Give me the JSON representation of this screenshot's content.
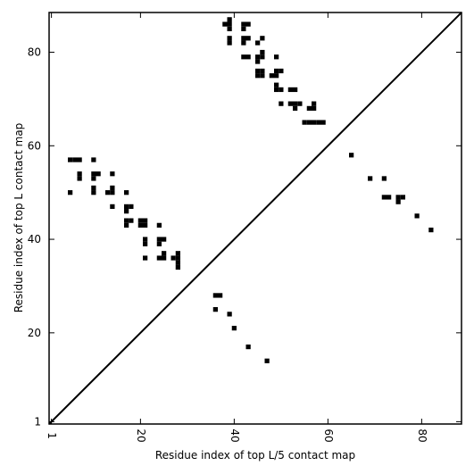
{
  "chart_data": {
    "type": "scatter",
    "title": "",
    "xlabel": "Residue index of top L/5 contact map",
    "ylabel": "Residue index of top L contact map",
    "xlim": [
      0.5,
      88.5
    ],
    "ylim": [
      0.5,
      88.5
    ],
    "xticks": [
      1,
      20,
      40,
      60,
      80
    ],
    "yticks": [
      1,
      20,
      40,
      60,
      80
    ],
    "grid": false,
    "diagonal": true,
    "marker_color": "#000000",
    "series": [
      {
        "points": [
          [
            38,
            86
          ],
          [
            39,
            86
          ],
          [
            39,
            87
          ],
          [
            39,
            85
          ],
          [
            42,
            86
          ],
          [
            43,
            86
          ],
          [
            42,
            85
          ],
          [
            39,
            83
          ],
          [
            39,
            82
          ],
          [
            42,
            83
          ],
          [
            42,
            82
          ],
          [
            43,
            83
          ],
          [
            45,
            82
          ],
          [
            46,
            83
          ],
          [
            42,
            79
          ],
          [
            43,
            79
          ],
          [
            45,
            79
          ],
          [
            45,
            78
          ],
          [
            46,
            79
          ],
          [
            46,
            80
          ],
          [
            49,
            79
          ],
          [
            45,
            76
          ],
          [
            46,
            76
          ],
          [
            45,
            75
          ],
          [
            46,
            75
          ],
          [
            48,
            75
          ],
          [
            49,
            75
          ],
          [
            49,
            76
          ],
          [
            50,
            76
          ],
          [
            49,
            73
          ],
          [
            49,
            72
          ],
          [
            50,
            72
          ],
          [
            52,
            72
          ],
          [
            53,
            72
          ],
          [
            50,
            69
          ],
          [
            52,
            69
          ],
          [
            53,
            69
          ],
          [
            54,
            69
          ],
          [
            53,
            68
          ],
          [
            56,
            68
          ],
          [
            57,
            68
          ],
          [
            57,
            69
          ],
          [
            55,
            65
          ],
          [
            56,
            65
          ],
          [
            57,
            65
          ],
          [
            58,
            65
          ],
          [
            59,
            65
          ],
          [
            5,
            57
          ],
          [
            6,
            57
          ],
          [
            7,
            57
          ],
          [
            10,
            57
          ],
          [
            7,
            54
          ],
          [
            7,
            53
          ],
          [
            10,
            54
          ],
          [
            11,
            54
          ],
          [
            14,
            54
          ],
          [
            10,
            53
          ],
          [
            10,
            51
          ],
          [
            10,
            50
          ],
          [
            13,
            50
          ],
          [
            14,
            50
          ],
          [
            14,
            51
          ],
          [
            17,
            50
          ],
          [
            5,
            50
          ],
          [
            14,
            47
          ],
          [
            17,
            47
          ],
          [
            18,
            47
          ],
          [
            17,
            46
          ],
          [
            17,
            44
          ],
          [
            18,
            44
          ],
          [
            17,
            43
          ],
          [
            20,
            44
          ],
          [
            21,
            44
          ],
          [
            20,
            43
          ],
          [
            21,
            43
          ],
          [
            24,
            43
          ],
          [
            21,
            40
          ],
          [
            21,
            39
          ],
          [
            24,
            40
          ],
          [
            25,
            40
          ],
          [
            24,
            39
          ],
          [
            21,
            36
          ],
          [
            24,
            36
          ],
          [
            25,
            36
          ],
          [
            25,
            37
          ],
          [
            27,
            36
          ],
          [
            28,
            36
          ],
          [
            28,
            37
          ],
          [
            28,
            35
          ],
          [
            28,
            34
          ],
          [
            36,
            28
          ],
          [
            37,
            28
          ],
          [
            36,
            25
          ],
          [
            39,
            24
          ],
          [
            40,
            21
          ],
          [
            43,
            17
          ],
          [
            47,
            14
          ],
          [
            65,
            58
          ],
          [
            69,
            53
          ],
          [
            72,
            53
          ],
          [
            72,
            49
          ],
          [
            73,
            49
          ],
          [
            75,
            49
          ],
          [
            76,
            49
          ],
          [
            75,
            48
          ],
          [
            79,
            45
          ],
          [
            82,
            42
          ]
        ]
      }
    ]
  }
}
